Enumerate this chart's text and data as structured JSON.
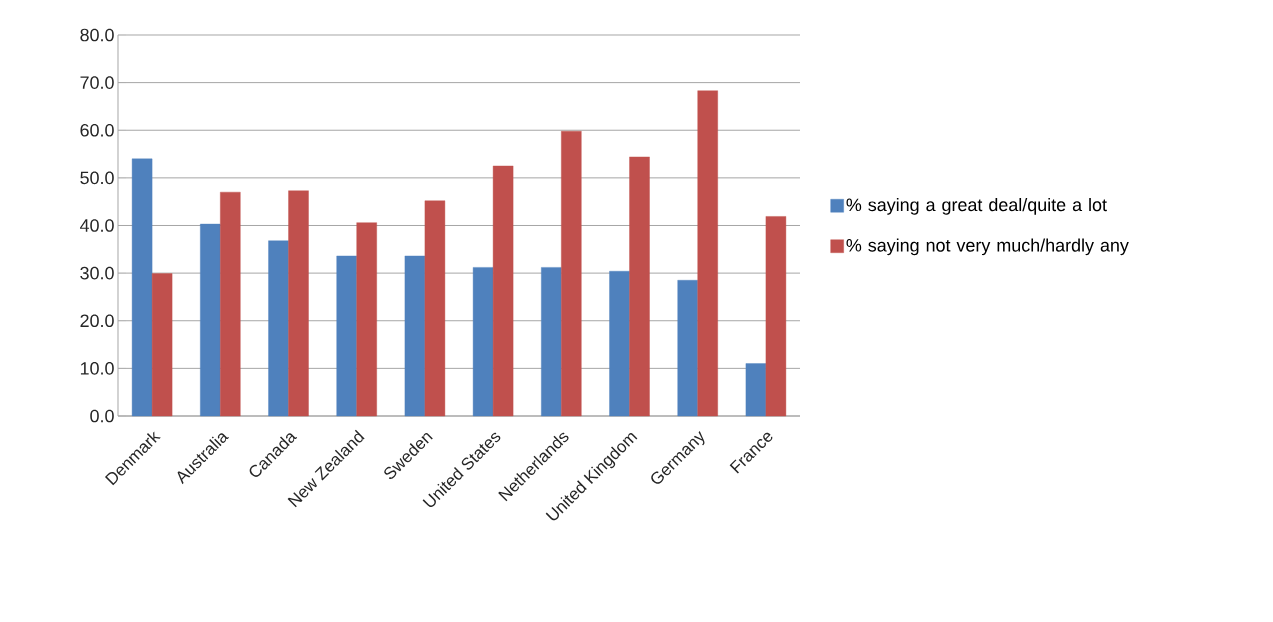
{
  "chart_data": {
    "type": "bar",
    "categories": [
      "Denmark",
      "Australia",
      "Canada",
      "New Zealand",
      "Sweden",
      "United States",
      "Netherlands",
      "United Kingdom",
      "Germany",
      "France"
    ],
    "series": [
      {
        "name": "% saying a great deal/quite a lot",
        "color": "#4f81bd",
        "values": [
          54.0,
          40.3,
          36.8,
          33.6,
          33.6,
          31.2,
          31.2,
          30.4,
          28.5,
          11.0
        ]
      },
      {
        "name": "% saying not very much/hardly any",
        "color": "#c0504d",
        "values": [
          29.9,
          47.0,
          47.3,
          40.6,
          45.2,
          52.5,
          59.8,
          54.4,
          68.3,
          41.9
        ]
      }
    ],
    "ylim": [
      0,
      80
    ],
    "yticks": [
      {
        "value": 0,
        "label": "0.0"
      },
      {
        "value": 10,
        "label": "10.0"
      },
      {
        "value": 20,
        "label": "20.0"
      },
      {
        "value": 30,
        "label": "30.0"
      },
      {
        "value": 40,
        "label": "40.0"
      },
      {
        "value": 50,
        "label": "50.0"
      },
      {
        "value": 60,
        "label": "60.0"
      },
      {
        "value": 70,
        "label": "70.0"
      },
      {
        "value": 80,
        "label": "80.0"
      }
    ],
    "grid": "y",
    "legend": "right"
  }
}
